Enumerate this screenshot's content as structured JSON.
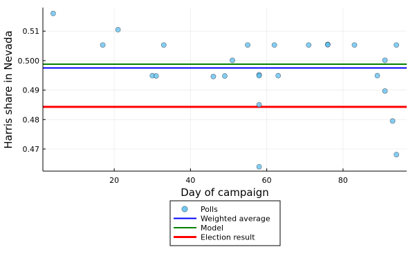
{
  "chart_data": {
    "type": "scatter",
    "xlabel": "Day of campaign",
    "ylabel": "Harris share in Nevada",
    "xlim": [
      1.3,
      96.7
    ],
    "ylim": [
      0.4625,
      0.518
    ],
    "xticks": [
      20,
      40,
      60,
      80
    ],
    "xtick_labels": [
      "20",
      "40",
      "60",
      "80"
    ],
    "yticks": [
      0.47,
      0.48,
      0.49,
      0.5,
      0.51
    ],
    "ytick_labels": [
      "0.47",
      "0.48",
      "0.49",
      "0.500",
      "0.51"
    ],
    "grid": true,
    "legend_position": "bottom-outside",
    "series": [
      {
        "name": "Polls",
        "kind": "scatter",
        "color": "#5bbcef",
        "x": [
          4,
          17,
          21,
          30,
          31,
          33,
          46,
          49,
          51,
          55,
          58,
          58,
          58,
          58,
          62,
          63,
          71,
          76,
          76,
          83,
          89,
          91,
          91,
          93,
          94,
          94
        ],
        "y": [
          0.516,
          0.5053,
          0.5105,
          0.4949,
          0.4948,
          0.5053,
          0.4946,
          0.4948,
          0.5001,
          0.5053,
          0.4952,
          0.4949,
          0.485,
          0.464,
          0.5053,
          0.4949,
          0.5053,
          0.5055,
          0.5054,
          0.5053,
          0.4949,
          0.5001,
          0.4897,
          0.4795,
          0.5053,
          0.4681
        ]
      },
      {
        "name": "Weighted average",
        "kind": "hline",
        "color": "#0000ff",
        "y": 0.4975
      },
      {
        "name": "Model",
        "kind": "hline",
        "color": "#008000",
        "y": 0.4988
      },
      {
        "name": "Election result",
        "kind": "hline",
        "color": "#ff0000",
        "y": 0.4843
      }
    ]
  }
}
